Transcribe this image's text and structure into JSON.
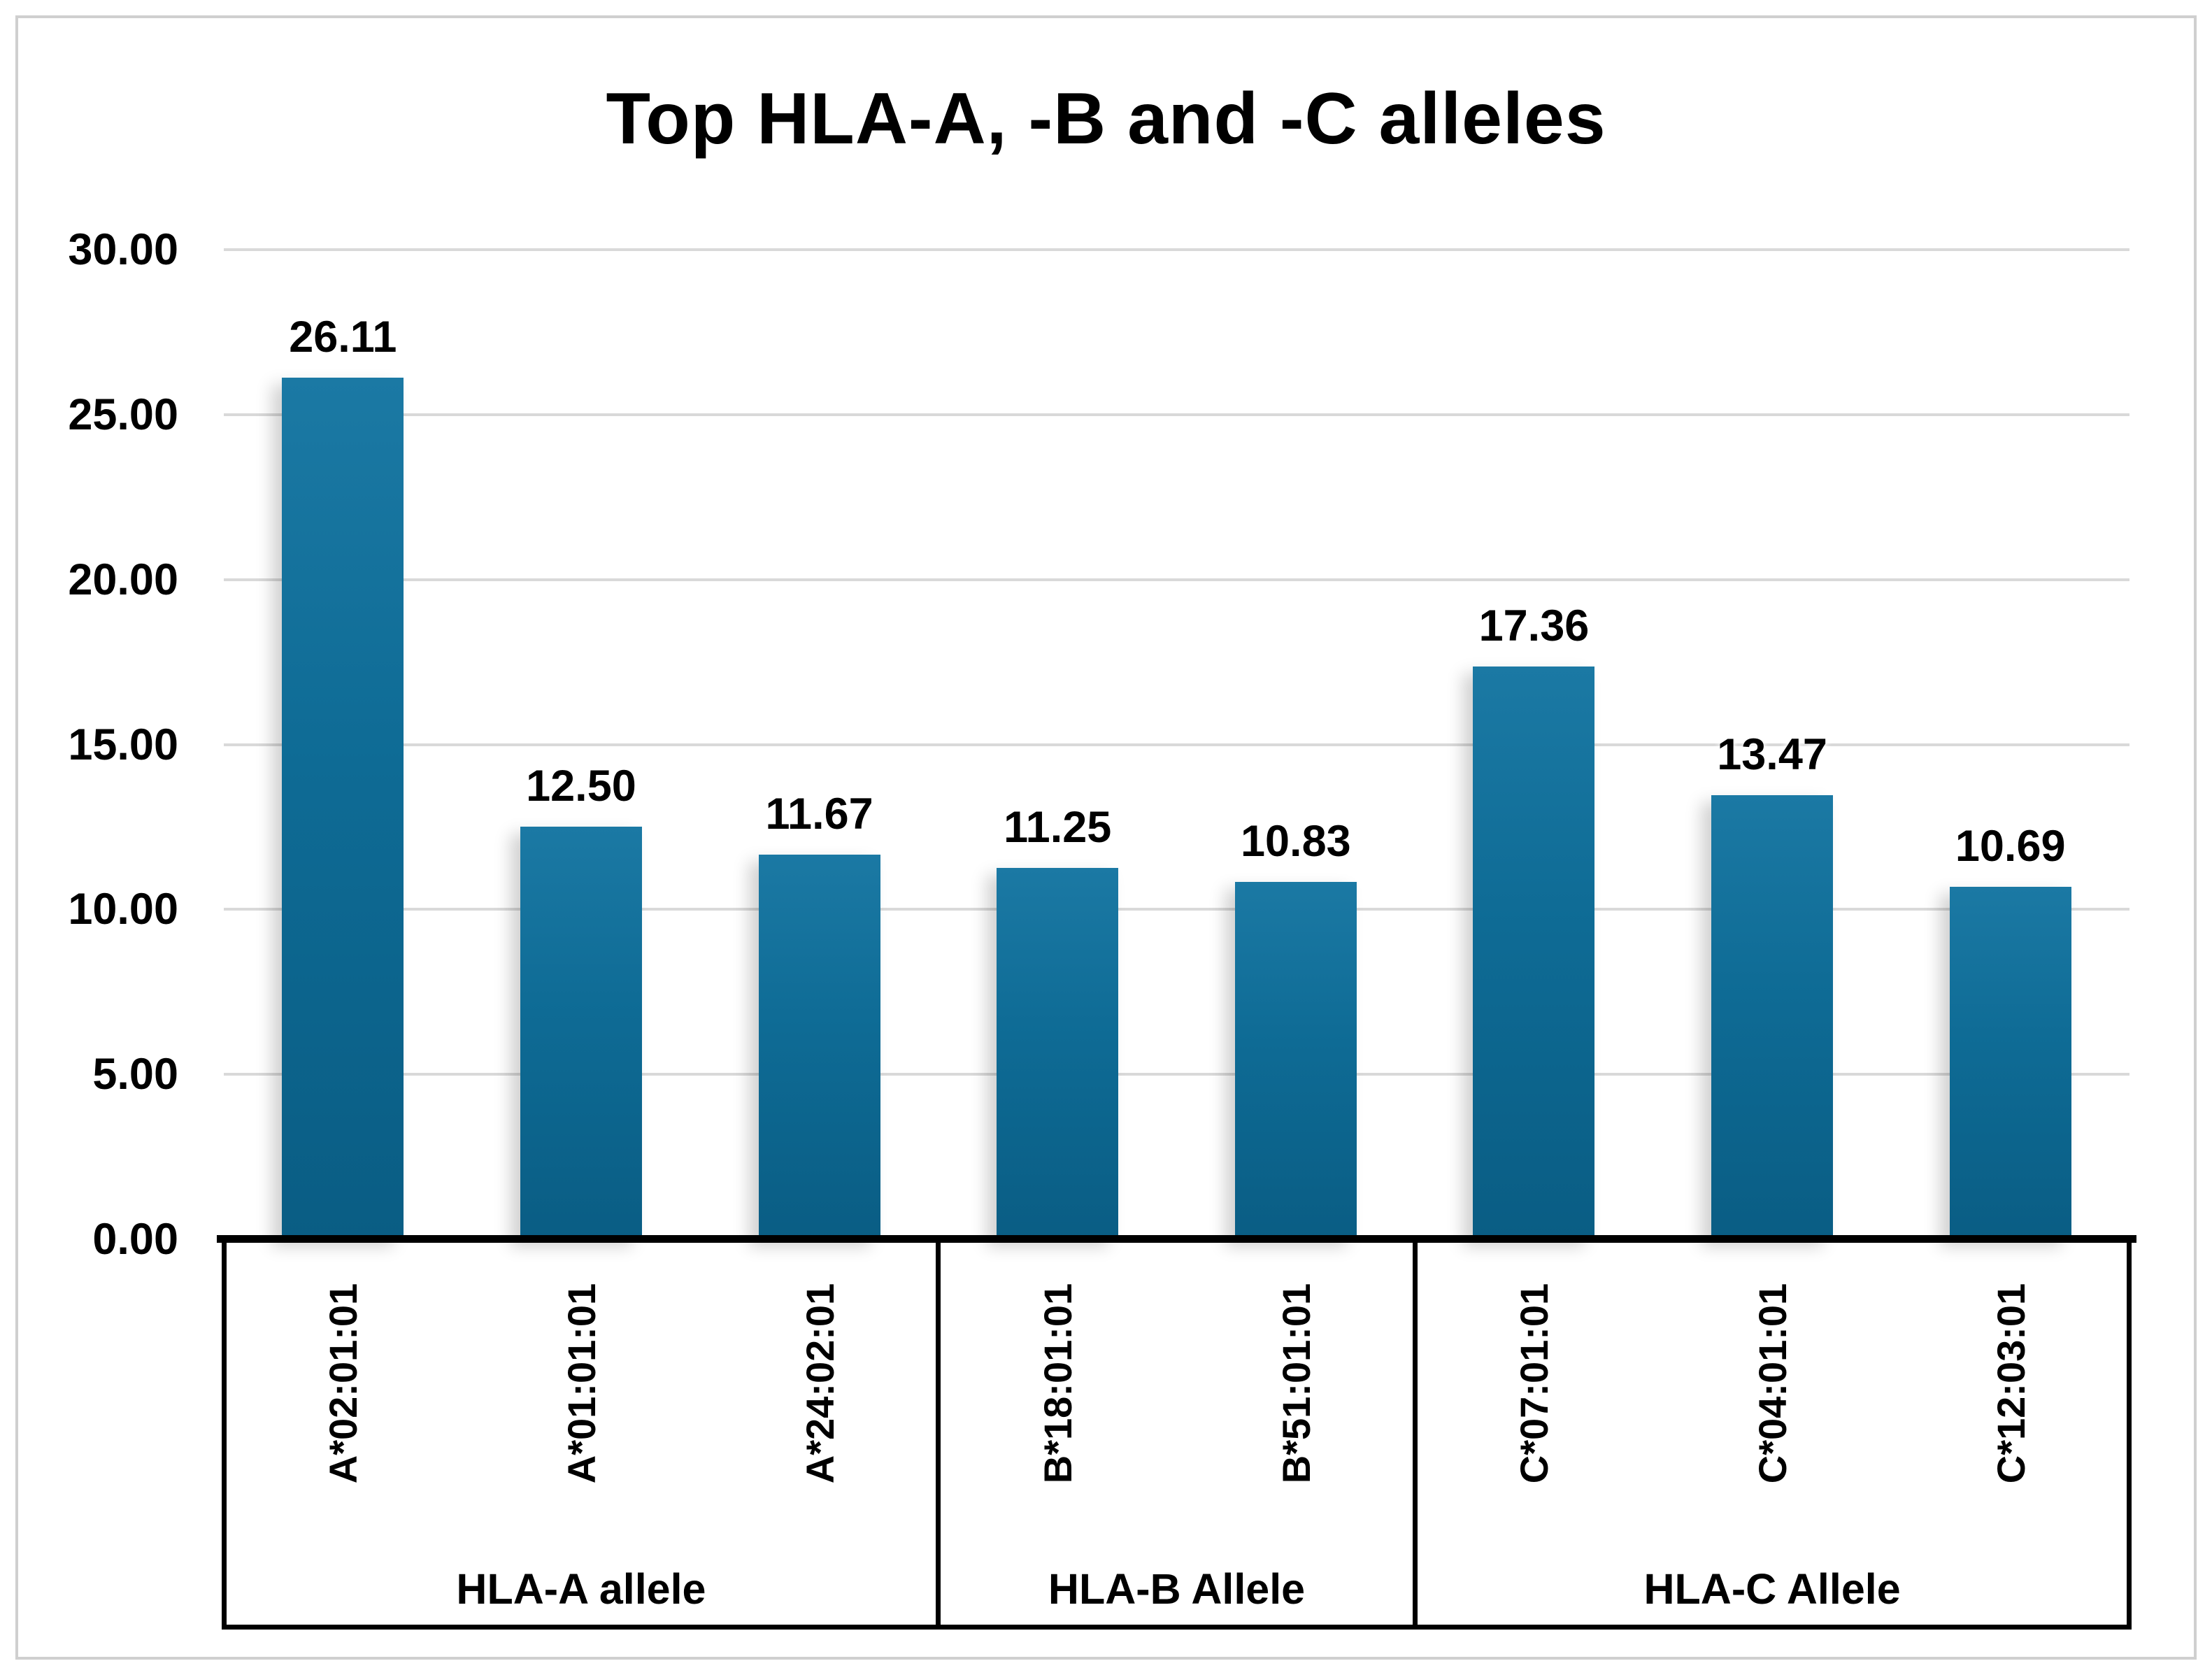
{
  "chart_data": {
    "type": "bar",
    "title": "Top HLA-A, -B and -C alleles",
    "xlabel": "",
    "ylabel": "",
    "grid": true,
    "legend": false,
    "ylim": [
      0,
      30
    ],
    "y_tick_step": 5,
    "y_ticks": [
      {
        "label": "0.00",
        "value": 0
      },
      {
        "label": "5.00",
        "value": 5
      },
      {
        "label": "10.00",
        "value": 10
      },
      {
        "label": "15.00",
        "value": 15
      },
      {
        "label": "20.00",
        "value": 20
      },
      {
        "label": "25.00",
        "value": 25
      },
      {
        "label": "30.00",
        "value": 30
      }
    ],
    "categories": [
      "A*02:01:01",
      "A*01:01:01",
      "A*24:02:01",
      "B*18:01:01",
      "B*51:01:01",
      "C*07:01:01",
      "C*04:01:01",
      "C*12:03:01"
    ],
    "values": [
      26.11,
      12.5,
      11.67,
      11.25,
      10.83,
      17.36,
      13.47,
      10.69
    ],
    "value_labels": [
      "26.11",
      "12.50",
      "11.67",
      "11.25",
      "10.83",
      "17.36",
      "13.47",
      "10.69"
    ],
    "groups": [
      {
        "label": "HLA-A allele",
        "count": 3
      },
      {
        "label": "HLA-B Allele",
        "count": 2
      },
      {
        "label": "HLA-C Allele",
        "count": 3
      }
    ],
    "colors": {
      "bar_gradient_top": "#1b79a4",
      "bar_gradient_mid": "#0e6b95",
      "bar_gradient_bottom": "#0a5d84",
      "gridline": "#d9d9d9",
      "axis": "#000000",
      "text": "#000000",
      "frame_border": "#cfcfcf",
      "background": "#ffffff"
    }
  }
}
